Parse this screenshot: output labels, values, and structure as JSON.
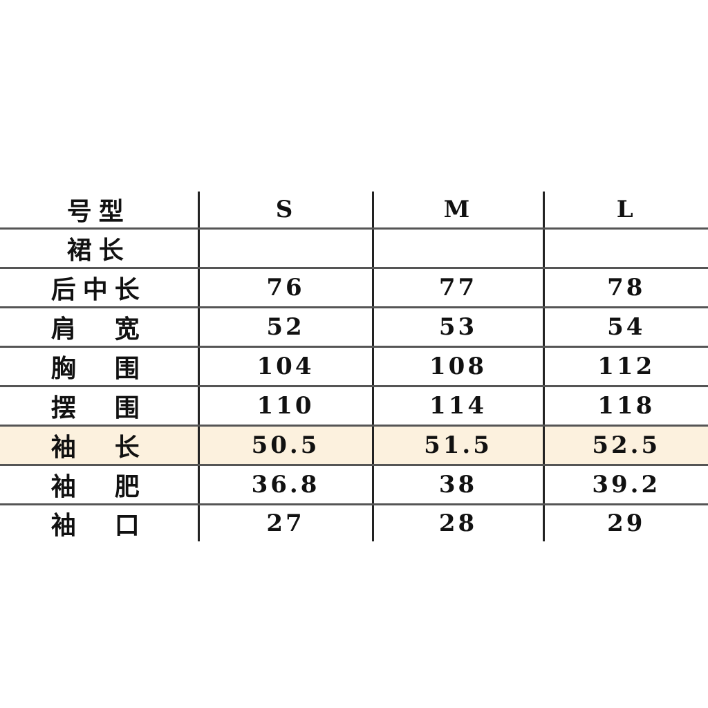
{
  "table": {
    "headers": [
      "号型",
      "S",
      "M",
      "L"
    ],
    "rows": [
      {
        "label": "裙长",
        "values": [
          "",
          "",
          ""
        ]
      },
      {
        "label": "后中长",
        "values": [
          "76",
          "77",
          "78"
        ]
      },
      {
        "label": "肩　宽",
        "values": [
          "52",
          "53",
          "54"
        ]
      },
      {
        "label": "胸　围",
        "values": [
          "104",
          "108",
          "112"
        ]
      },
      {
        "label": "摆　围",
        "values": [
          "110",
          "114",
          "118"
        ]
      },
      {
        "label": "袖　长",
        "values": [
          "50.5",
          "51.5",
          "52.5"
        ],
        "highlighted": true
      },
      {
        "label": "袖　肥",
        "values": [
          "36.8",
          "38",
          "39.2"
        ]
      },
      {
        "label": "袖　口",
        "values": [
          "27",
          "28",
          "29"
        ]
      }
    ],
    "highlight_color": "#fcf1de"
  }
}
